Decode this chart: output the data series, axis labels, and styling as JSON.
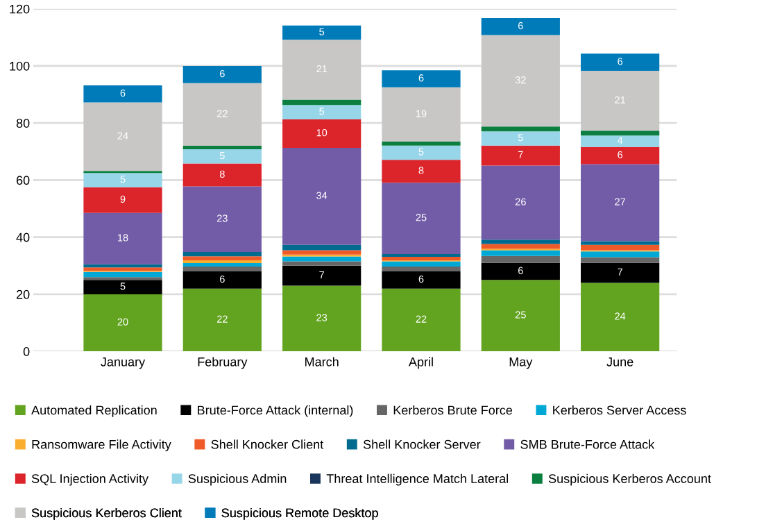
{
  "chart_data": {
    "type": "bar",
    "stacked": true,
    "categories": [
      "January",
      "February",
      "March",
      "April",
      "May",
      "June"
    ],
    "series": [
      {
        "name": "Automated Replication",
        "color": "#62a420",
        "values": [
          20,
          22,
          23,
          22,
          25,
          24
        ],
        "value_labels": [
          "20",
          "22",
          "23",
          "22",
          "25",
          "24"
        ]
      },
      {
        "name": "Brute-Force Attack (internal)",
        "color": "#000000",
        "values": [
          5,
          6,
          7,
          6,
          6,
          7
        ],
        "value_labels": [
          "5",
          "6",
          "7",
          "6",
          "6",
          "7"
        ]
      },
      {
        "name": "Kerberos Brute Force",
        "color": "#666666",
        "values": [
          1.0,
          1.7,
          1.5,
          1.7,
          2.4,
          2.0
        ]
      },
      {
        "name": "Kerberos Server Access",
        "color": "#00a8d6",
        "values": [
          1.8,
          1.2,
          1.7,
          1.8,
          2.0,
          2.0
        ]
      },
      {
        "name": "Ransomware File Activity",
        "color": "#f9ae30",
        "values": [
          0.4,
          1.0,
          0.7,
          0.4,
          0.5,
          0.4
        ]
      },
      {
        "name": "Shell Knocker Client",
        "color": "#f05a28",
        "values": [
          1.2,
          1.4,
          1.5,
          1.2,
          1.7,
          1.9
        ]
      },
      {
        "name": "Shell Knocker Server",
        "color": "#006b8f",
        "values": [
          1.1,
          1.5,
          1.9,
          1.0,
          1.5,
          1.3
        ]
      },
      {
        "name": "SMB Brute-Force Attack",
        "color": "#725ca7",
        "values": [
          18,
          23,
          34,
          25,
          26,
          27
        ],
        "value_labels": [
          "18",
          "23",
          "34",
          "25",
          "26",
          "27"
        ]
      },
      {
        "name": "SQL Injection Activity",
        "color": "#dc242b",
        "values": [
          9,
          8,
          10,
          8,
          7,
          6
        ],
        "value_labels": [
          "9",
          "8",
          "10",
          "8",
          "7",
          "6"
        ]
      },
      {
        "name": "Suspicious Admin",
        "color": "#97d5e8",
        "values": [
          5,
          5,
          5,
          5,
          5,
          4
        ],
        "value_labels": [
          "5",
          "5",
          "5",
          "5",
          "5",
          "4"
        ]
      },
      {
        "name": "Threat Intelligence Match Lateral",
        "color": "#1b365d",
        "values": [
          0,
          0,
          0,
          0,
          0,
          0
        ]
      },
      {
        "name": "Suspicious Kerberos Account",
        "color": "#0a7f3f",
        "values": [
          0.7,
          1.2,
          1.9,
          1.4,
          1.7,
          1.7
        ]
      },
      {
        "name": "Suspicious Kerberos Client",
        "color": "#c8c7c5",
        "values": [
          24,
          22,
          21,
          19,
          32,
          21
        ],
        "value_labels": [
          "24",
          "22",
          "21",
          "19",
          "32",
          "21"
        ]
      },
      {
        "name": "Suspicious Remote Desktop",
        "color": "#007bb9",
        "values": [
          6,
          6,
          5,
          6,
          6,
          6
        ],
        "value_labels": [
          "6",
          "6",
          "5",
          "6",
          "6",
          "6"
        ]
      }
    ],
    "ylim": [
      0,
      120
    ],
    "yticks": [
      0,
      20,
      40,
      60,
      80,
      100,
      120
    ],
    "grid": "y",
    "legend": "bottom"
  }
}
